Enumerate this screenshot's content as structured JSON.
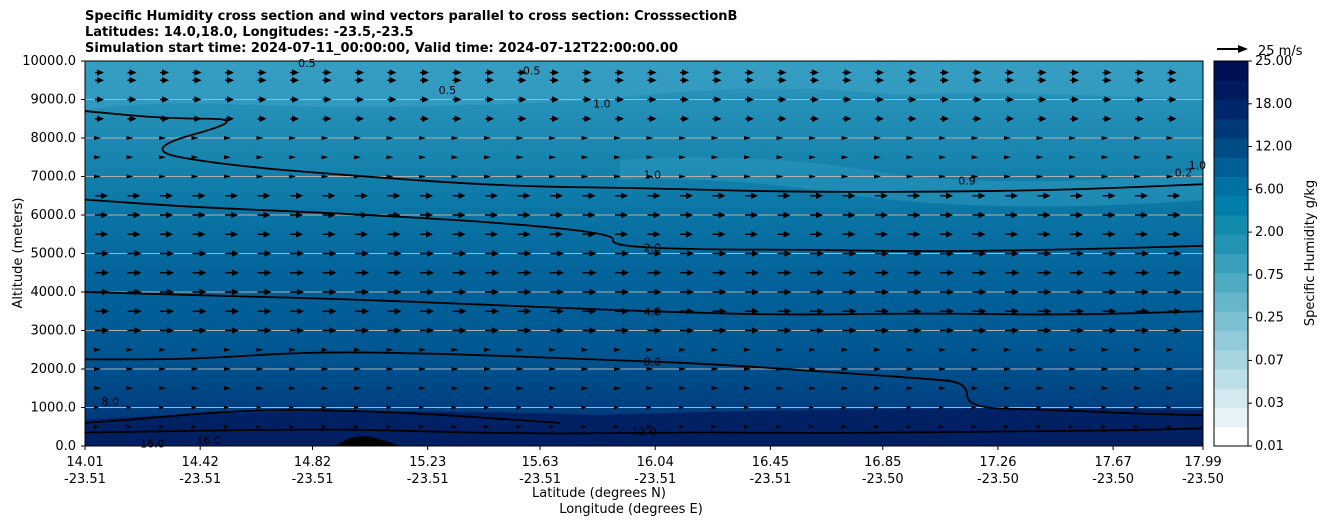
{
  "title_lines": [
    "Specific Humidity cross section and wind vectors parallel to cross section: CrosssectionB",
    "Latitudes: 14.0,18.0, Longitudes: -23.5,-23.5",
    "Simulation start time: 2024-07-11_00:00:00, Valid time: 2024-07-12T22:00:00.00"
  ],
  "chart_data": {
    "type": "contour",
    "title": "Specific Humidity cross section and wind vectors parallel to cross section: CrosssectionB",
    "xlabel": "Latitude (degrees N)",
    "xlabel2": "Longitude (degrees E)",
    "ylabel": "Altitude (meters)",
    "ylim": [
      0,
      10000
    ],
    "xlim": [
      14.01,
      17.99
    ],
    "y_ticks": [
      "0.0",
      "1000.0",
      "2000.0",
      "3000.0",
      "4000.0",
      "5000.0",
      "6000.0",
      "7000.0",
      "8000.0",
      "9000.0",
      "10000.0"
    ],
    "y_tick_values": [
      0,
      1000,
      2000,
      3000,
      4000,
      5000,
      6000,
      7000,
      8000,
      9000,
      10000
    ],
    "x_ticks": [
      {
        "lat": "14.01",
        "lon": "-23.51"
      },
      {
        "lat": "14.42",
        "lon": "-23.51"
      },
      {
        "lat": "14.82",
        "lon": "-23.51"
      },
      {
        "lat": "15.23",
        "lon": "-23.51"
      },
      {
        "lat": "15.63",
        "lon": "-23.51"
      },
      {
        "lat": "16.04",
        "lon": "-23.51"
      },
      {
        "lat": "16.45",
        "lon": "-23.51"
      },
      {
        "lat": "16.85",
        "lon": "-23.50"
      },
      {
        "lat": "17.26",
        "lon": "-23.50"
      },
      {
        "lat": "17.67",
        "lon": "-23.50"
      },
      {
        "lat": "17.99",
        "lon": "-23.50"
      }
    ],
    "grid": "horizontal",
    "colorbar": {
      "label": "Specific Humidity g/kg",
      "tick_labels": [
        "0.01",
        "0.03",
        "0.07",
        "0.25",
        "0.75",
        "2.00",
        "6.00",
        "12.00",
        "18.00",
        "25.00"
      ],
      "colors": [
        "#ffffff",
        "#e6f2f6",
        "#d3e9ef",
        "#bddfe8",
        "#a8d4e0",
        "#92cad9",
        "#7cc0d1",
        "#66b5ca",
        "#4fabc2",
        "#3a9fbb",
        "#2494b3",
        "#118aac",
        "#0080a8",
        "#0071a0",
        "#005f94",
        "#004c86",
        "#003878",
        "#00266b",
        "#001a5e",
        "#001055"
      ],
      "scale": "discrete"
    },
    "wind_key": {
      "label": "25 m/s",
      "speed": 25
    },
    "contour_levels": [
      {
        "label": "0.2",
        "value": 0.2
      },
      {
        "label": "0.5",
        "value": 0.5
      },
      {
        "label": "0.9",
        "value": 0.9
      },
      {
        "label": "1.0",
        "value": 1.0
      },
      {
        "label": "2.0",
        "value": 2.0
      },
      {
        "label": "4.0",
        "value": 4.0
      },
      {
        "label": "8.0",
        "value": 8.0
      },
      {
        "label": "12.0",
        "value": 12.0
      },
      {
        "label": "16.0",
        "value": 16.0
      }
    ],
    "contours": [
      {
        "level": "12.0",
        "points": [
          [
            14.01,
            350
          ],
          [
            14.6,
            420
          ],
          [
            15.0,
            430
          ],
          [
            15.4,
            340
          ],
          [
            15.8,
            320
          ],
          [
            16.2,
            360
          ],
          [
            16.6,
            330
          ],
          [
            17.0,
            360
          ],
          [
            17.4,
            380
          ],
          [
            17.8,
            420
          ],
          [
            17.99,
            460
          ]
        ]
      },
      {
        "level": "16.0",
        "points": [
          [
            14.01,
            600
          ],
          [
            14.2,
            700
          ],
          [
            14.5,
            900
          ],
          [
            14.82,
            950
          ],
          [
            15.2,
            850
          ],
          [
            15.5,
            700
          ],
          [
            15.7,
            600
          ]
        ]
      },
      {
        "level": "8.0",
        "points": [
          [
            14.01,
            2250
          ],
          [
            14.4,
            2250
          ],
          [
            14.8,
            2450
          ],
          [
            15.3,
            2400
          ],
          [
            15.8,
            2250
          ],
          [
            16.2,
            2150
          ],
          [
            16.6,
            1950
          ],
          [
            17.0,
            1750
          ],
          [
            17.15,
            1650
          ],
          [
            17.15,
            1000
          ],
          [
            17.4,
            950
          ],
          [
            17.8,
            830
          ],
          [
            17.99,
            800
          ]
        ]
      },
      {
        "level": "4.0",
        "points": [
          [
            14.01,
            4000
          ],
          [
            14.5,
            3900
          ],
          [
            15.0,
            3800
          ],
          [
            15.5,
            3650
          ],
          [
            16.0,
            3500
          ],
          [
            16.5,
            3400
          ],
          [
            17.0,
            3450
          ],
          [
            17.5,
            3400
          ],
          [
            17.99,
            3500
          ]
        ]
      },
      {
        "level": "2.0",
        "points": [
          [
            14.01,
            6400
          ],
          [
            14.4,
            6200
          ],
          [
            14.9,
            6050
          ],
          [
            15.5,
            5800
          ],
          [
            15.9,
            5500
          ],
          [
            15.88,
            5200
          ],
          [
            16.2,
            5100
          ],
          [
            16.6,
            5100
          ],
          [
            17.0,
            5050
          ],
          [
            17.5,
            5100
          ],
          [
            17.99,
            5200
          ]
        ]
      },
      {
        "level": "1.0",
        "points": [
          [
            14.01,
            8700
          ],
          [
            14.3,
            8500
          ],
          [
            14.6,
            8500
          ],
          [
            14.2,
            7700
          ],
          [
            14.5,
            7300
          ],
          [
            15.0,
            7000
          ],
          [
            15.5,
            6750
          ],
          [
            16.0,
            6700
          ],
          [
            16.5,
            6600
          ],
          [
            17.0,
            6600
          ],
          [
            17.5,
            6650
          ],
          [
            17.99,
            6800
          ]
        ]
      }
    ],
    "contour_labels": [
      {
        "text": "0.5",
        "x": 14.8,
        "y": 9950
      },
      {
        "text": "0.5",
        "x": 15.3,
        "y": 9250
      },
      {
        "text": "0.5",
        "x": 15.6,
        "y": 9750
      },
      {
        "text": "1.0",
        "x": 15.85,
        "y": 8900
      },
      {
        "text": "1.0",
        "x": 16.03,
        "y": 7050
      },
      {
        "text": "0.9",
        "x": 17.15,
        "y": 6900
      },
      {
        "text": "0.2",
        "x": 17.92,
        "y": 7100
      },
      {
        "text": "1.0",
        "x": 17.97,
        "y": 7300
      },
      {
        "text": "2.0",
        "x": 16.03,
        "y": 5150
      },
      {
        "text": "4.0",
        "x": 16.03,
        "y": 3500
      },
      {
        "text": "8.0",
        "x": 16.03,
        "y": 2200
      },
      {
        "text": "8.0",
        "x": 14.1,
        "y": 1150
      },
      {
        "text": "12.0",
        "x": 16.0,
        "y": 380
      },
      {
        "text": "16.0",
        "x": 14.25,
        "y": 60
      },
      {
        "text": "16.0",
        "x": 14.45,
        "y": 150
      }
    ]
  }
}
